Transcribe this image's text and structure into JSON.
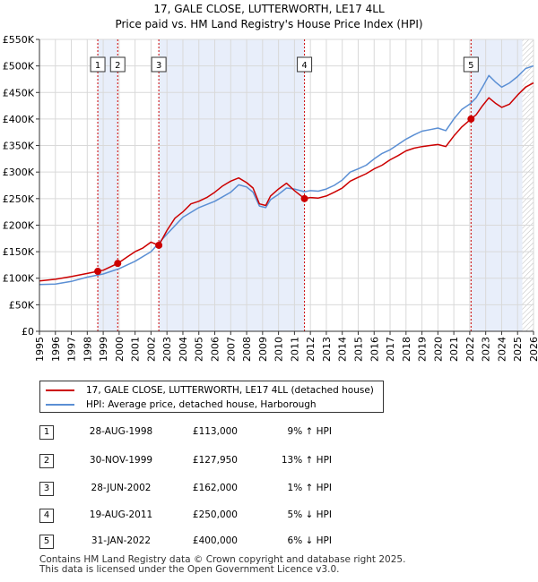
{
  "title_line1": "17, GALE CLOSE, LUTTERWORTH, LE17 4LL",
  "title_line2": "Price paid vs. HM Land Registry's House Price Index (HPI)",
  "colors": {
    "property": "#cc0000",
    "hpi": "#5b8fd4",
    "shade": "#e8eefa",
    "grid": "#d9d9d9",
    "marker_line": "#cc0000"
  },
  "chart_data": {
    "type": "line",
    "title": "17, GALE CLOSE, LUTTERWORTH, LE17 4LL - Price paid vs. HM Land Registry's House Price Index (HPI)",
    "xlim": [
      1995,
      2026
    ],
    "ylim": [
      0,
      550000
    ],
    "y_ticks": [
      0,
      50000,
      100000,
      150000,
      200000,
      250000,
      300000,
      350000,
      400000,
      450000,
      500000,
      550000
    ],
    "y_tick_labels": [
      "£0",
      "£50K",
      "£100K",
      "£150K",
      "£200K",
      "£250K",
      "£300K",
      "£350K",
      "£400K",
      "£450K",
      "£500K",
      "£550K"
    ],
    "x_ticks": [
      1995,
      1996,
      1997,
      1998,
      1999,
      2000,
      2001,
      2002,
      2003,
      2004,
      2005,
      2006,
      2007,
      2008,
      2009,
      2010,
      2011,
      2012,
      2013,
      2014,
      2015,
      2016,
      2017,
      2018,
      2019,
      2020,
      2021,
      2022,
      2023,
      2024,
      2025,
      2026
    ],
    "shaded_ranges": [
      [
        1998.66,
        1999.91
      ],
      [
        2002.49,
        2011.63
      ],
      [
        2022.08,
        2025.3
      ]
    ],
    "hatched_from": 2025.3,
    "series": [
      {
        "name": "17, GALE CLOSE, LUTTERWORTH, LE17 4LL (detached house)",
        "color": "#cc0000",
        "x": [
          1995.0,
          1996.0,
          1997.0,
          1998.0,
          1998.66,
          1999.0,
          1999.91,
          2000.5,
          2001.0,
          2001.5,
          2002.0,
          2002.49,
          2003.0,
          2003.5,
          2004.0,
          2004.5,
          2005.0,
          2005.5,
          2006.0,
          2006.5,
          2007.0,
          2007.5,
          2008.0,
          2008.4,
          2008.8,
          2009.2,
          2009.5,
          2010.0,
          2010.5,
          2011.0,
          2011.63,
          2012.0,
          2012.5,
          2013.0,
          2013.5,
          2014.0,
          2014.5,
          2015.0,
          2015.5,
          2016.0,
          2016.5,
          2017.0,
          2017.5,
          2018.0,
          2018.5,
          2019.0,
          2019.5,
          2020.0,
          2020.5,
          2021.0,
          2021.5,
          2022.08,
          2022.4,
          2022.8,
          2023.2,
          2023.6,
          2024.0,
          2024.5,
          2025.0,
          2025.5,
          2026.0
        ],
        "y": [
          95000,
          98000,
          103000,
          109000,
          113000,
          115000,
          127950,
          140000,
          150000,
          157000,
          168000,
          162000,
          190000,
          213000,
          225000,
          240000,
          245000,
          252000,
          262000,
          274000,
          283000,
          289000,
          280000,
          270000,
          240000,
          237000,
          255000,
          268000,
          279000,
          265000,
          250000,
          252000,
          251000,
          255000,
          262000,
          270000,
          283000,
          290000,
          297000,
          306000,
          313000,
          323000,
          331000,
          340000,
          345000,
          348000,
          350000,
          352000,
          348000,
          368000,
          385000,
          400000,
          408000,
          425000,
          440000,
          430000,
          422000,
          428000,
          445000,
          460000,
          468000
        ]
      },
      {
        "name": "HPI: Average price, detached house, Harborough",
        "color": "#5b8fd4",
        "x": [
          1995.0,
          1996.0,
          1997.0,
          1998.0,
          1999.0,
          2000.0,
          2001.0,
          2002.0,
          2003.0,
          2004.0,
          2005.0,
          2006.0,
          2007.0,
          2007.5,
          2008.0,
          2008.4,
          2008.8,
          2009.2,
          2009.5,
          2010.0,
          2010.5,
          2011.0,
          2011.63,
          2012.0,
          2012.5,
          2013.0,
          2013.5,
          2014.0,
          2014.5,
          2015.0,
          2015.5,
          2016.0,
          2016.5,
          2017.0,
          2017.5,
          2018.0,
          2018.5,
          2019.0,
          2019.5,
          2020.0,
          2020.5,
          2021.0,
          2021.5,
          2022.0,
          2022.4,
          2022.8,
          2023.2,
          2023.6,
          2024.0,
          2024.5,
          2025.0,
          2025.5,
          2026.0
        ],
        "y": [
          88000,
          89000,
          94000,
          102000,
          108000,
          118000,
          132000,
          150000,
          183000,
          215000,
          233000,
          245000,
          262000,
          276000,
          272000,
          262000,
          236000,
          233000,
          248000,
          258000,
          270000,
          268000,
          263000,
          265000,
          264000,
          268000,
          275000,
          285000,
          300000,
          306000,
          313000,
          325000,
          335000,
          342000,
          352000,
          362000,
          370000,
          377000,
          380000,
          383000,
          378000,
          400000,
          418000,
          428000,
          440000,
          460000,
          482000,
          470000,
          460000,
          468000,
          480000,
          495000,
          500000
        ]
      }
    ],
    "transactions": [
      {
        "id": "1",
        "x": 1998.66,
        "price": 113000
      },
      {
        "id": "2",
        "x": 1999.91,
        "price": 127950
      },
      {
        "id": "3",
        "x": 2002.49,
        "price": 162000
      },
      {
        "id": "4",
        "x": 2011.63,
        "price": 250000
      },
      {
        "id": "5",
        "x": 2022.08,
        "price": 400000
      }
    ]
  },
  "legend": {
    "property_label": "17, GALE CLOSE, LUTTERWORTH, LE17 4LL (detached house)",
    "hpi_label": "HPI: Average price, detached house, Harborough"
  },
  "table": [
    {
      "num": "1",
      "date": "28-AUG-1998",
      "price": "£113,000",
      "hpi": "9% ↑ HPI"
    },
    {
      "num": "2",
      "date": "30-NOV-1999",
      "price": "£127,950",
      "hpi": "13% ↑ HPI"
    },
    {
      "num": "3",
      "date": "28-JUN-2002",
      "price": "£162,000",
      "hpi": "1% ↑ HPI"
    },
    {
      "num": "4",
      "date": "19-AUG-2011",
      "price": "£250,000",
      "hpi": "5% ↓ HPI"
    },
    {
      "num": "5",
      "date": "31-JAN-2022",
      "price": "£400,000",
      "hpi": "6% ↓ HPI"
    }
  ],
  "footer_line1": "Contains HM Land Registry data © Crown copyright and database right 2025.",
  "footer_line2": "This data is licensed under the Open Government Licence v3.0."
}
